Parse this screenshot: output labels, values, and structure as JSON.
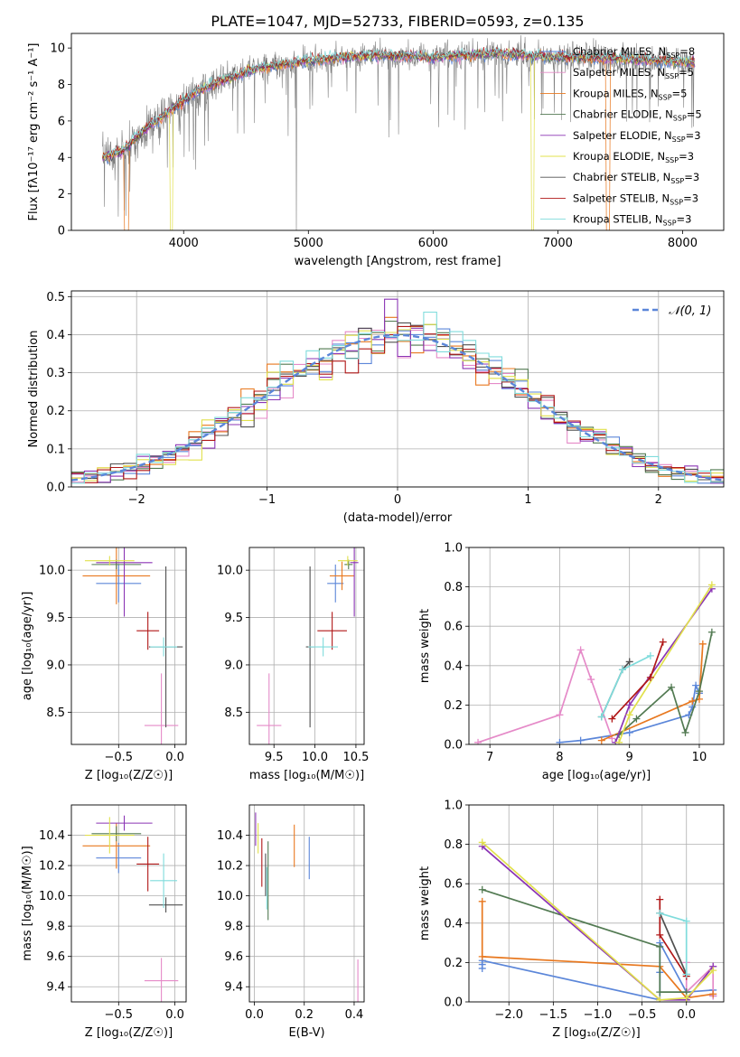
{
  "figure": {
    "title": "PLATE=1047, MJD=52733, FIBERID=0593, z=0.135"
  },
  "colors": {
    "chabrier_miles": "#5b86d9",
    "salpeter_miles": "#e58ac8",
    "kroupa_miles": "#e8781f",
    "chabrier_elodie": "#527a52",
    "salpeter_elodie": "#8b35b5",
    "kroupa_elodie": "#e1e04c",
    "chabrier_stelib": "#505050",
    "salpeter_stelib": "#b01717",
    "kroupa_stelib": "#7fdcdc",
    "data": "#808080",
    "grid": "#b0b0b0",
    "normal": "#5b86d9"
  },
  "chart_data": [
    {
      "id": "spectrum",
      "type": "line",
      "xlabel": "wavelength [Angstrom, rest frame]",
      "ylabel": "Flux [fλ10⁻¹⁷ erg cm⁻² s⁻¹ A⁻¹]",
      "xlim": [
        3100,
        8330
      ],
      "ylim": [
        0,
        10.8
      ],
      "xticks": [
        4000,
        5000,
        6000,
        7000,
        8000
      ],
      "yticks": [
        0,
        2,
        4,
        6,
        8,
        10
      ],
      "grid": false,
      "legend_position": "top-right",
      "wavelength_range": [
        3350,
        8100
      ],
      "continuum": {
        "x": [
          3350,
          3500,
          3700,
          3900,
          4100,
          4300,
          4600,
          5000,
          5500,
          6000,
          6500,
          7000,
          7500,
          8100
        ],
        "y": [
          4.0,
          4.3,
          5.6,
          6.6,
          7.6,
          8.2,
          8.9,
          9.3,
          9.6,
          9.5,
          9.7,
          9.5,
          9.4,
          9.2
        ]
      },
      "series": [
        {
          "name": "Chabrier MILES, N_SSP=8",
          "label_main": "Chabrier MILES, N",
          "label_sub": "SSP",
          "label_tail": "=8",
          "color_key": "chabrier_miles"
        },
        {
          "name": "Salpeter MILES, N_SSP=5",
          "label_main": "Salpeter MILES, N",
          "label_sub": "SSP",
          "label_tail": "=5",
          "color_key": "salpeter_miles"
        },
        {
          "name": "Kroupa MILES, N_SSP=5",
          "label_main": "Kroupa MILES, N",
          "label_sub": "SSP",
          "label_tail": "=5",
          "color_key": "kroupa_miles"
        },
        {
          "name": "Chabrier ELODIE, N_SSP=5",
          "label_main": "Chabrier ELODIE, N",
          "label_sub": "SSP",
          "label_tail": "=5",
          "color_key": "chabrier_elodie"
        },
        {
          "name": "Salpeter ELODIE, N_SSP=3",
          "label_main": "Salpeter ELODIE, N",
          "label_sub": "SSP",
          "label_tail": "=3",
          "color_key": "salpeter_elodie"
        },
        {
          "name": "Kroupa ELODIE, N_SSP=3",
          "label_main": "Kroupa ELODIE, N",
          "label_sub": "SSP",
          "label_tail": "=3",
          "color_key": "kroupa_elodie"
        },
        {
          "name": "Chabrier STELIB, N_SSP=3",
          "label_main": "Chabrier STELIB, N",
          "label_sub": "SSP",
          "label_tail": "=3",
          "color_key": "chabrier_stelib"
        },
        {
          "name": "Salpeter STELIB, N_SSP=3",
          "label_main": "Salpeter STELIB, N",
          "label_sub": "SSP",
          "label_tail": "=3",
          "color_key": "salpeter_stelib"
        },
        {
          "name": "Kroupa STELIB, N_SSP=3",
          "label_main": "Kroupa STELIB, N",
          "label_sub": "SSP",
          "label_tail": "=3",
          "color_key": "kroupa_stelib"
        }
      ]
    },
    {
      "id": "residuals",
      "type": "line",
      "xlabel": "(data-model)/error",
      "ylabel": "Normed distribution",
      "xlim": [
        -2.5,
        2.5
      ],
      "ylim": [
        0,
        0.515
      ],
      "xticks": [
        -2,
        -1,
        0,
        1,
        2
      ],
      "xtick_labels": [
        "−2",
        "−1",
        "0",
        "1",
        "2"
      ],
      "yticks": [
        0.0,
        0.1,
        0.2,
        0.3,
        0.4,
        0.5
      ],
      "ytick_labels": [
        "0.0",
        "0.1",
        "0.2",
        "0.3",
        "0.4",
        "0.5"
      ],
      "grid": true,
      "bin_width": 0.1,
      "legend": {
        "label": "𝒩(0, 1)",
        "position": "top-right"
      }
    },
    {
      "id": "age_vs_Z",
      "type": "scatter",
      "xlabel": "Z [log₁₀(Z/Z☉)]",
      "ylabel": "age  [log₁₀(age/yr)]",
      "xlim": [
        -0.92,
        0.1
      ],
      "ylim": [
        8.16,
        10.24
      ],
      "xticks": [
        -0.5,
        0.0
      ],
      "xtick_labels": [
        "−0.5",
        "0.0"
      ],
      "yticks": [
        8.5,
        9.0,
        9.5,
        10.0
      ],
      "ytick_labels": [
        "8.5",
        "9.0",
        "9.5",
        "10.0"
      ],
      "grid": true,
      "points": [
        {
          "k": "chabrier_miles",
          "x": -0.5,
          "xerr": 0.2,
          "y": 9.86,
          "yerr": 0.2
        },
        {
          "k": "salpeter_miles",
          "x": -0.12,
          "xerr": 0.15,
          "y": 8.36,
          "yerr": 0.55
        },
        {
          "k": "kroupa_miles",
          "x": -0.52,
          "xerr": 0.3,
          "y": 9.94,
          "yerr": 0.3
        },
        {
          "k": "chabrier_elodie",
          "x": -0.52,
          "xerr": 0.22,
          "y": 10.06,
          "yerr": 0.05
        },
        {
          "k": "salpeter_elodie",
          "x": -0.45,
          "xerr": 0.25,
          "y": 10.08,
          "yerr": 0.57
        },
        {
          "k": "kroupa_elodie",
          "x": -0.58,
          "xerr": 0.22,
          "y": 10.1,
          "yerr": 0.05
        },
        {
          "k": "chabrier_stelib",
          "x": -0.08,
          "xerr": 0.15,
          "y": 9.19,
          "yerr": 0.85
        },
        {
          "k": "salpeter_stelib",
          "x": -0.24,
          "xerr": 0.1,
          "y": 9.36,
          "yerr": 0.2
        },
        {
          "k": "kroupa_stelib",
          "x": -0.1,
          "xerr": 0.12,
          "y": 9.19,
          "yerr": 0.1
        }
      ]
    },
    {
      "id": "age_vs_mass",
      "type": "scatter",
      "xlabel": "mass [log₁₀(M/M☉)]",
      "ylabel": "",
      "xlim": [
        9.2,
        10.6
      ],
      "ylim": [
        8.16,
        10.24
      ],
      "xticks": [
        9.5,
        10.0,
        10.5
      ],
      "xtick_labels": [
        "9.5",
        "10.0",
        "10.5"
      ],
      "yticks": [
        8.5,
        9.0,
        9.5,
        10.0
      ],
      "ytick_labels": [
        "8.5",
        "9.0",
        "9.5",
        "10.0"
      ],
      "grid": true,
      "points": [
        {
          "k": "chabrier_miles",
          "x": 10.25,
          "xerr": 0.1,
          "y": 9.86,
          "yerr": 0.2
        },
        {
          "k": "salpeter_miles",
          "x": 9.44,
          "xerr": 0.15,
          "y": 8.36,
          "yerr": 0.55
        },
        {
          "k": "kroupa_miles",
          "x": 10.33,
          "xerr": 0.15,
          "y": 9.94,
          "yerr": 0.15
        },
        {
          "k": "chabrier_elodie",
          "x": 10.41,
          "xerr": 0.05,
          "y": 10.06,
          "yerr": 0.05
        },
        {
          "k": "salpeter_elodie",
          "x": 10.48,
          "xerr": 0.05,
          "y": 10.08,
          "yerr": 0.57
        },
        {
          "k": "kroupa_elodie",
          "x": 10.4,
          "xerr": 0.12,
          "y": 10.1,
          "yerr": 0.05
        },
        {
          "k": "chabrier_stelib",
          "x": 9.94,
          "xerr": 0.05,
          "y": 9.19,
          "yerr": 0.85
        },
        {
          "k": "salpeter_stelib",
          "x": 10.21,
          "xerr": 0.18,
          "y": 9.36,
          "yerr": 0.2
        },
        {
          "k": "kroupa_stelib",
          "x": 10.1,
          "xerr": 0.18,
          "y": 9.19,
          "yerr": 0.1
        }
      ]
    },
    {
      "id": "weight_vs_age",
      "type": "line",
      "xlabel": "age  [log₁₀(age/yr)]",
      "ylabel": "mass weight",
      "xlim": [
        6.7,
        10.35
      ],
      "ylim": [
        0,
        1
      ],
      "xticks": [
        7,
        8,
        9,
        10
      ],
      "xtick_labels": [
        "7",
        "8",
        "9",
        "10"
      ],
      "yticks": [
        0.0,
        0.2,
        0.4,
        0.6,
        0.8,
        1.0
      ],
      "ytick_labels": [
        "0.0",
        "0.2",
        "0.4",
        "0.6",
        "0.8",
        "1.0"
      ],
      "grid": true,
      "series": [
        {
          "k": "chabrier_miles",
          "x": [
            8.0,
            8.3,
            9.0,
            9.85,
            9.9,
            9.95,
            10.0
          ],
          "y": [
            0.01,
            0.02,
            0.06,
            0.15,
            0.19,
            0.3,
            0.26
          ]
        },
        {
          "k": "salpeter_miles",
          "x": [
            6.83,
            8.0,
            8.3,
            8.45,
            8.75
          ],
          "y": [
            0.01,
            0.15,
            0.48,
            0.33,
            0.03
          ]
        },
        {
          "k": "kroupa_miles",
          "x": [
            8.6,
            9.9,
            10.0,
            10.05
          ],
          "y": [
            0.02,
            0.22,
            0.23,
            0.51
          ]
        },
        {
          "k": "chabrier_elodie",
          "x": [
            8.85,
            9.1,
            9.6,
            9.8,
            10.0,
            10.18
          ],
          "y": [
            0.05,
            0.13,
            0.29,
            0.06,
            0.27,
            0.57
          ]
        },
        {
          "k": "salpeter_elodie",
          "x": [
            8.8,
            9.0,
            10.18
          ],
          "y": [
            0.01,
            0.2,
            0.79
          ]
        },
        {
          "k": "kroupa_elodie",
          "x": [
            8.85,
            9.0,
            10.18
          ],
          "y": [
            0.01,
            0.15,
            0.81
          ]
        },
        {
          "k": "chabrier_stelib",
          "x": [
            8.6,
            8.9,
            9.0
          ],
          "y": [
            0.14,
            0.38,
            0.42
          ]
        },
        {
          "k": "salpeter_stelib",
          "x": [
            8.75,
            9.3,
            9.48
          ],
          "y": [
            0.13,
            0.34,
            0.52
          ]
        },
        {
          "k": "kroupa_stelib",
          "x": [
            8.6,
            8.9,
            9.3
          ],
          "y": [
            0.14,
            0.38,
            0.45
          ]
        }
      ]
    },
    {
      "id": "mass_vs_Z",
      "type": "scatter",
      "xlabel": "Z [log₁₀(Z/Z☉)]",
      "ylabel": "mass [log₁₀(M/M☉)]",
      "xlim": [
        -0.92,
        0.1
      ],
      "ylim": [
        9.3,
        10.6
      ],
      "xticks": [
        -0.5,
        0.0
      ],
      "xtick_labels": [
        "−0.5",
        "0.0"
      ],
      "yticks": [
        9.4,
        9.6,
        9.8,
        10.0,
        10.2,
        10.4
      ],
      "ytick_labels": [
        "9.4",
        "9.6",
        "9.8",
        "10.0",
        "10.2",
        "10.4"
      ],
      "grid": true,
      "points": [
        {
          "k": "chabrier_miles",
          "x": -0.5,
          "xerr": 0.2,
          "y": 10.25,
          "yerr": 0.1
        },
        {
          "k": "salpeter_miles",
          "x": -0.12,
          "xerr": 0.15,
          "y": 9.44,
          "yerr": 0.15
        },
        {
          "k": "kroupa_miles",
          "x": -0.52,
          "xerr": 0.3,
          "y": 10.33,
          "yerr": 0.15
        },
        {
          "k": "chabrier_elodie",
          "x": -0.52,
          "xerr": 0.22,
          "y": 10.41,
          "yerr": 0.05
        },
        {
          "k": "salpeter_elodie",
          "x": -0.45,
          "xerr": 0.25,
          "y": 10.48,
          "yerr": 0.05
        },
        {
          "k": "kroupa_elodie",
          "x": -0.58,
          "xerr": 0.22,
          "y": 10.4,
          "yerr": 0.12
        },
        {
          "k": "chabrier_stelib",
          "x": -0.08,
          "xerr": 0.15,
          "y": 9.94,
          "yerr": 0.05
        },
        {
          "k": "salpeter_stelib",
          "x": -0.24,
          "xerr": 0.1,
          "y": 10.21,
          "yerr": 0.18
        },
        {
          "k": "kroupa_stelib",
          "x": -0.1,
          "xerr": 0.12,
          "y": 10.1,
          "yerr": 0.18
        }
      ]
    },
    {
      "id": "mass_vs_ebv",
      "type": "scatter",
      "xlabel": "E(B-V)",
      "ylabel": "",
      "xlim": [
        -0.02,
        0.44
      ],
      "ylim": [
        9.3,
        10.6
      ],
      "xticks": [
        0.0,
        0.2,
        0.4
      ],
      "xtick_labels": [
        "0.0",
        "0.2",
        "0.4"
      ],
      "yticks": [
        9.4,
        9.6,
        9.8,
        10.0,
        10.2,
        10.4
      ],
      "ytick_labels": [
        "9.4",
        "9.6",
        "9.8",
        "10.0",
        "10.2",
        "10.4"
      ],
      "grid": true,
      "points": [
        {
          "k": "chabrier_miles",
          "x": 0.22,
          "xerr": 0,
          "y": 10.25,
          "yerr": 0.14
        },
        {
          "k": "salpeter_miles",
          "x": 0.415,
          "xerr": 0,
          "y": 9.44,
          "yerr": 0.14
        },
        {
          "k": "kroupa_miles",
          "x": 0.16,
          "xerr": 0,
          "y": 10.33,
          "yerr": 0.14
        },
        {
          "k": "chabrier_elodie",
          "x": 0.055,
          "xerr": 0,
          "y": 10.1,
          "yerr": 0.26
        },
        {
          "k": "salpeter_elodie",
          "x": 0.005,
          "xerr": 0,
          "y": 10.44,
          "yerr": 0.11
        },
        {
          "k": "kroupa_elodie",
          "x": 0.015,
          "xerr": 0,
          "y": 10.38,
          "yerr": 0.1
        },
        {
          "k": "chabrier_stelib",
          "x": 0.045,
          "xerr": 0,
          "y": 10.14,
          "yerr": 0.14
        },
        {
          "k": "salpeter_stelib",
          "x": 0.03,
          "xerr": 0,
          "y": 10.22,
          "yerr": 0.16
        },
        {
          "k": "kroupa_stelib",
          "x": 0.05,
          "xerr": 0,
          "y": 10.05,
          "yerr": 0.14
        }
      ]
    },
    {
      "id": "weight_vs_Z",
      "type": "line",
      "xlabel": "Z [log₁₀(Z/Z☉)]",
      "ylabel": "mass weight",
      "xlim": [
        -2.45,
        0.42
      ],
      "ylim": [
        0,
        1
      ],
      "xticks": [
        -2.0,
        -1.5,
        -1.0,
        -0.5,
        0.0
      ],
      "xtick_labels": [
        "−2.0",
        "−1.5",
        "−1.0",
        "−0.5",
        "0.0"
      ],
      "yticks": [
        0.0,
        0.2,
        0.4,
        0.6,
        0.8,
        1.0
      ],
      "ytick_labels": [
        "0.0",
        "0.2",
        "0.4",
        "0.6",
        "0.8",
        "1.0"
      ],
      "grid": true,
      "series": [
        {
          "k": "chabrier_miles",
          "x": [
            -2.3,
            -2.3,
            -2.3,
            -0.3,
            -0.3,
            -0.3,
            0.0,
            0.3,
            0.3
          ],
          "y": [
            0.17,
            0.19,
            0.21,
            0.01,
            0.15,
            0.3,
            0.05,
            0.06,
            0.03
          ]
        },
        {
          "k": "salpeter_miles",
          "x": [
            0.0,
            0.0,
            0.3,
            0.3
          ],
          "y": [
            0.2,
            0.05,
            0.18,
            0.03
          ]
        },
        {
          "k": "kroupa_miles",
          "x": [
            -2.3,
            -2.3,
            -0.3,
            0.0,
            0.3
          ],
          "y": [
            0.51,
            0.23,
            0.18,
            0.02,
            0.04
          ]
        },
        {
          "k": "chabrier_elodie",
          "x": [
            -2.3,
            -0.3,
            -0.3,
            0.0,
            0.0
          ],
          "y": [
            0.57,
            0.28,
            0.05,
            0.05,
            0.01
          ]
        },
        {
          "k": "salpeter_elodie",
          "x": [
            -2.3,
            -0.3,
            0.0,
            0.3
          ],
          "y": [
            0.79,
            0.01,
            0.01,
            0.18
          ]
        },
        {
          "k": "kroupa_elodie",
          "x": [
            -2.3,
            -0.3,
            0.0,
            0.3
          ],
          "y": [
            0.81,
            0.01,
            0.02,
            0.16
          ]
        },
        {
          "k": "chabrier_stelib",
          "x": [
            -0.3,
            0.0
          ],
          "y": [
            0.45,
            0.14
          ]
        },
        {
          "k": "salpeter_stelib",
          "x": [
            -0.3,
            -0.3,
            0.0
          ],
          "y": [
            0.52,
            0.34,
            0.13
          ]
        },
        {
          "k": "kroupa_stelib",
          "x": [
            -0.3,
            0.0,
            0.0
          ],
          "y": [
            0.45,
            0.41,
            0.14
          ]
        }
      ]
    }
  ]
}
